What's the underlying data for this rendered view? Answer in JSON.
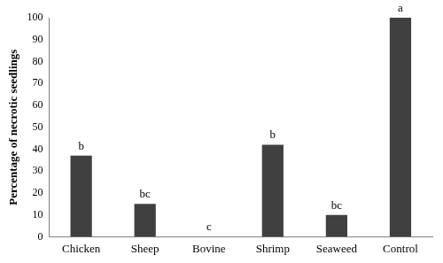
{
  "chart_data": {
    "type": "bar",
    "y_label": "Percentage of necrotic seedlings",
    "categories": [
      "Chicken",
      "Sheep",
      "Bovine",
      "Shrimp",
      "Seaweed",
      "Control"
    ],
    "values": [
      37,
      15,
      0,
      42,
      10,
      100
    ],
    "annotations": [
      "b",
      "bc",
      "c",
      "b",
      "bc",
      "a"
    ],
    "color": "#404040",
    "ylim": [
      0,
      100
    ],
    "yticks": [
      0,
      10,
      20,
      30,
      40,
      50,
      60,
      70,
      80,
      90,
      100
    ],
    "grid": false
  }
}
